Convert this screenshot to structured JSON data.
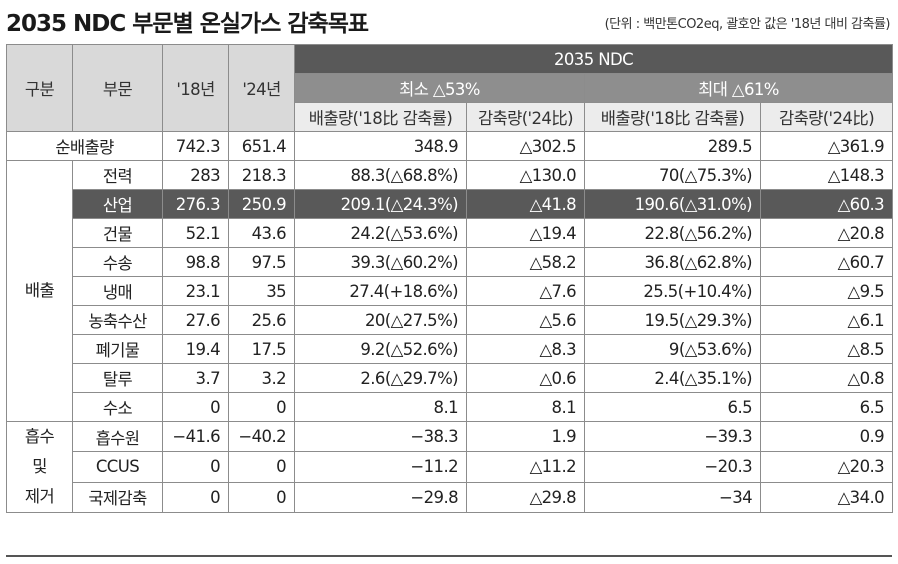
{
  "title": "2035 NDC 부문별 온실가스 감축목표",
  "unit_note": "(단위 : 백만톤CO2eq, 괄호안 값은 '18년 대비 감축률)",
  "header": {
    "category": "구분",
    "sector": "부문",
    "y18": "'18년",
    "y24": "'24년",
    "ndc": "2035 NDC",
    "min": "최소 △53%",
    "max": "최대 △61%",
    "emission": "배출량('18比 감축률)",
    "reduction": "감축량('24比)"
  },
  "groups": {
    "net": "순배출량",
    "emission": "배출",
    "absorb": "흡수\n및\n제거"
  },
  "net_row": {
    "y18": "742.3",
    "y24": "651.4",
    "min_em": "348.9",
    "min_red": "△302.5",
    "max_em": "289.5",
    "max_red": "△361.9"
  },
  "emission_rows": [
    {
      "sector": "전력",
      "y18": "283",
      "y24": "218.3",
      "min_em": "88.3(△68.8%)",
      "min_red": "△130.0",
      "max_em": "70(△75.3%)",
      "max_red": "△148.3"
    },
    {
      "sector": "산업",
      "y18": "276.3",
      "y24": "250.9",
      "min_em": "209.1(△24.3%)",
      "min_red": "△41.8",
      "max_em": "190.6(△31.0%)",
      "max_red": "△60.3"
    },
    {
      "sector": "건물",
      "y18": "52.1",
      "y24": "43.6",
      "min_em": "24.2(△53.6%)",
      "min_red": "△19.4",
      "max_em": "22.8(△56.2%)",
      "max_red": "△20.8"
    },
    {
      "sector": "수송",
      "y18": "98.8",
      "y24": "97.5",
      "min_em": "39.3(△60.2%)",
      "min_red": "△58.2",
      "max_em": "36.8(△62.8%)",
      "max_red": "△60.7"
    },
    {
      "sector": "냉매",
      "y18": "23.1",
      "y24": "35",
      "min_em": "27.4(+18.6%)",
      "min_red": "△7.6",
      "max_em": "25.5(+10.4%)",
      "max_red": "△9.5"
    },
    {
      "sector": "농축수산",
      "y18": "27.6",
      "y24": "25.6",
      "min_em": "20(△27.5%)",
      "min_red": "△5.6",
      "max_em": "19.5(△29.3%)",
      "max_red": "△6.1"
    },
    {
      "sector": "폐기물",
      "y18": "19.4",
      "y24": "17.5",
      "min_em": "9.2(△52.6%)",
      "min_red": "△8.3",
      "max_em": "9(△53.6%)",
      "max_red": "△8.5"
    },
    {
      "sector": "탈루",
      "y18": "3.7",
      "y24": "3.2",
      "min_em": "2.6(△29.7%)",
      "min_red": "△0.6",
      "max_em": "2.4(△35.1%)",
      "max_red": "△0.8"
    },
    {
      "sector": "수소",
      "y18": "0",
      "y24": "0",
      "min_em": "8.1",
      "min_red": "8.1",
      "max_em": "6.5",
      "max_red": "6.5"
    }
  ],
  "absorb_rows": [
    {
      "sector": "흡수원",
      "y18": "−41.6",
      "y24": "−40.2",
      "min_em": "−38.3",
      "min_red": "1.9",
      "max_em": "−39.3",
      "max_red": "0.9"
    },
    {
      "sector": "CCUS",
      "y18": "0",
      "y24": "0",
      "min_em": "−11.2",
      "min_red": "△11.2",
      "max_em": "−20.3",
      "max_red": "△20.3"
    },
    {
      "sector": "국제감축",
      "y18": "0",
      "y24": "0",
      "min_em": "−29.8",
      "min_red": "△29.8",
      "max_em": "−34",
      "max_red": "△34.0"
    }
  ],
  "colors": {
    "dark_header": "#595959",
    "mid_header": "#8e8e8e",
    "light_header": "#d9d9d9",
    "highlight_row": "#595959"
  }
}
